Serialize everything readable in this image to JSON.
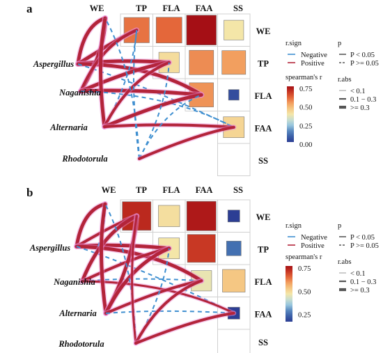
{
  "chart_data": [
    {
      "panel": "a",
      "type": "heatmap",
      "variables": [
        "WE",
        "TP",
        "FLA",
        "FAA",
        "SS"
      ],
      "heatmap_title_top": [
        "WE",
        "TP",
        "FLA",
        "FAA",
        "SS"
      ],
      "heatmap_row_labels": [
        "WE",
        "TP",
        "FLA",
        "FAA",
        "SS"
      ],
      "correlations": [
        {
          "row": "WE",
          "col": "TP",
          "r": 0.7
        },
        {
          "row": "WE",
          "col": "FLA",
          "r": 0.72
        },
        {
          "row": "WE",
          "col": "FAA",
          "r": 0.9
        },
        {
          "row": "WE",
          "col": "SS",
          "r": 0.45
        },
        {
          "row": "TP",
          "col": "FLA",
          "r": 0.48
        },
        {
          "row": "TP",
          "col": "FAA",
          "r": 0.66
        },
        {
          "row": "TP",
          "col": "SS",
          "r": 0.63
        },
        {
          "row": "FLA",
          "col": "FAA",
          "r": 0.65
        },
        {
          "row": "FLA",
          "col": "SS",
          "r": 0.04
        },
        {
          "row": "FAA",
          "col": "SS",
          "r": 0.5
        }
      ],
      "taxa": [
        "Aspergillus",
        "Naganishia",
        "Alternaria",
        "Rhodotorula"
      ],
      "colorbar": {
        "title": "spearman's r",
        "ticks": [
          "0.75",
          "0.50",
          "0.25",
          "0.00"
        ],
        "min": 0,
        "max": 0.9
      },
      "legend": {
        "rsign_title": "r.sign",
        "negative": "Negative",
        "positive": "Positive",
        "p_title": "p",
        "p_sig": "P < 0.05",
        "p_nonsig": "P >= 0.05",
        "rabs_title": "r.abs",
        "rabs_1": "< 0.1",
        "rabs_2": "0.1 − 0.3",
        "rabs_3": ">= 0.3"
      }
    },
    {
      "panel": "b",
      "type": "heatmap",
      "variables": [
        "WE",
        "TP",
        "FLA",
        "FAA",
        "SS"
      ],
      "heatmap_title_top": [
        "WE",
        "TP",
        "FLA",
        "FAA",
        "SS"
      ],
      "heatmap_row_labels": [
        "WE",
        "TP",
        "FLA",
        "FAA",
        "SS"
      ],
      "correlations": [
        {
          "row": "WE",
          "col": "TP",
          "r": 0.85
        },
        {
          "row": "WE",
          "col": "FLA",
          "r": 0.52
        },
        {
          "row": "WE",
          "col": "FAA",
          "r": 0.88
        },
        {
          "row": "WE",
          "col": "SS",
          "r": 0.1
        },
        {
          "row": "TP",
          "col": "FLA",
          "r": 0.5
        },
        {
          "row": "TP",
          "col": "FAA",
          "r": 0.82
        },
        {
          "row": "TP",
          "col": "SS",
          "r": 0.22
        },
        {
          "row": "FLA",
          "col": "FAA",
          "r": 0.48
        },
        {
          "row": "FLA",
          "col": "SS",
          "r": 0.58
        },
        {
          "row": "FAA",
          "col": "SS",
          "r": 0.1
        }
      ],
      "taxa": [
        "Aspergillus",
        "Naganishia",
        "Alternaria",
        "Rhodotorula"
      ],
      "colorbar": {
        "title": "spearman's r",
        "ticks": [
          "0.75",
          "0.50",
          "0.25"
        ],
        "min": 0.1,
        "max": 0.9
      },
      "legend": {
        "rsign_title": "r.sign",
        "negative": "Negative",
        "positive": "Positive",
        "p_title": "p",
        "p_sig": "P < 0.05",
        "p_nonsig": "P >= 0.05",
        "rabs_title": "r.abs",
        "rabs_1": "< 0.1",
        "rabs_2": "0.1 − 0.3",
        "rabs_3": ">= 0.3"
      }
    }
  ],
  "colors": {
    "positive": "#b3243a",
    "negative": "#3f8fd0",
    "pos_glow": "#ec8fd9",
    "grid_border": "#d0d0d0",
    "scale": [
      "#2c3e94",
      "#4575b4",
      "#abd9e9",
      "#f4e6a8",
      "#f6b26b",
      "#e0542e",
      "#a50f15"
    ]
  }
}
